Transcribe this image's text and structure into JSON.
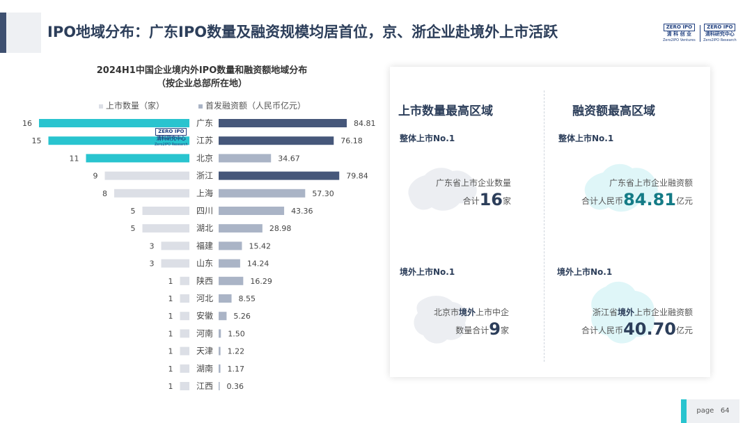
{
  "page_title": "IPO地域分布：广东IPO数量及融资规模均居首位，京、浙企业赴境外上市活跃",
  "logos": {
    "left": {
      "mark": "ZERO IPO",
      "cn": "清 科 创 业",
      "en": "Zero2IPO Ventures"
    },
    "right": {
      "mark": "ZERO IPO",
      "cn": "清科研究中心",
      "en": "Zero2IPO Research"
    }
  },
  "watermark": {
    "mark": "ZERO IPO",
    "cn": "清科研究中心",
    "en": "Zero2IPO Research"
  },
  "chart_title_line1": "2024H1中国企业境内外IPO数量和融资额地域分布",
  "chart_title_line2": "（按企业总部所在地）",
  "legend": {
    "count": "上市数量（家）",
    "amount": "首发融资额（人民币亿元）"
  },
  "colors": {
    "highlight": "#29c4cf",
    "dark": "#46577a",
    "mid": "#aab4c6",
    "light": "#dcdfe6",
    "teal_text": "#147b86"
  },
  "chart_data": {
    "type": "bar",
    "title": "2024H1中国企业境内外IPO数量和融资额地域分布（按企业总部所在地）",
    "categories": [
      "广东",
      "江苏",
      "北京",
      "浙江",
      "上海",
      "四川",
      "湖北",
      "福建",
      "山东",
      "陕西",
      "河北",
      "安徽",
      "河南",
      "天津",
      "湖南",
      "江西"
    ],
    "series": [
      {
        "name": "上市数量（家）",
        "values": [
          16,
          15,
          11,
          9,
          8,
          5,
          5,
          3,
          3,
          1,
          1,
          1,
          1,
          1,
          1,
          1
        ],
        "labels": [
          "16",
          "15",
          "11",
          "9",
          "8",
          "5",
          "5",
          "3",
          "3",
          "1",
          "1",
          "1",
          "1",
          "1",
          "1",
          "1"
        ]
      },
      {
        "name": "首发融资额（人民币亿元）",
        "values": [
          84.81,
          76.18,
          34.67,
          79.84,
          57.3,
          43.36,
          28.98,
          15.42,
          14.24,
          16.29,
          8.55,
          5.26,
          1.5,
          1.22,
          1.17,
          0.36
        ],
        "labels": [
          "84.81",
          "76.18",
          "34.67",
          "79.84",
          "57.30",
          "43.36",
          "28.98",
          "15.42",
          "14.24",
          "16.29",
          "8.55",
          "5.26",
          "1.50",
          "1.22",
          "1.17",
          "0.36"
        ]
      }
    ],
    "count_highlight_top": 3,
    "amount_dark_categories": [
      "广东",
      "江苏",
      "浙江"
    ],
    "legend_position": "top",
    "grid": false
  },
  "panel": {
    "col_left_heading": "上市数量最高区域",
    "col_right_heading": "融资额最高区域",
    "left_top": {
      "sub": "整体上市No.1",
      "line1": "广东省上市企业数量",
      "pre": "合计",
      "value": "16",
      "unit": "家"
    },
    "right_top": {
      "sub": "整体上市No.1",
      "line1": "广东省上市企业融资额",
      "pre": "合计人民币",
      "value": "84.81",
      "unit": "亿元"
    },
    "left_bottom": {
      "sub": "境外上市No.1",
      "line1_a": "北京市",
      "line1_b": "境外",
      "line1_c": "上市中企",
      "pre": "数量合计",
      "value": "9",
      "unit": "家"
    },
    "right_bottom": {
      "sub": "境外上市No.1",
      "line1_a": "浙江省",
      "line1_b": "境外",
      "line1_c": "上市企业融资额",
      "pre": "合计人民币",
      "value": "40.70",
      "unit": "亿元"
    }
  },
  "page": {
    "label": "page",
    "number": "64"
  }
}
